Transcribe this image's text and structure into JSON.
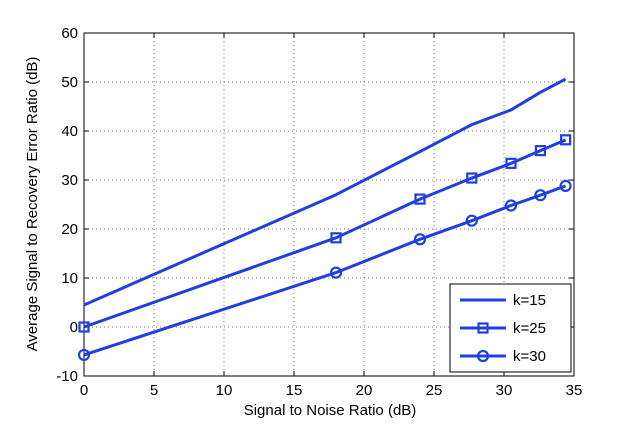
{
  "chart_data": {
    "type": "line",
    "title": "",
    "xlabel": "Signal to Noise Ratio (dB)",
    "ylabel": "Average Signal to Recovery Error Ratio (dB)",
    "xlim": [
      0,
      35
    ],
    "ylim": [
      -10,
      60
    ],
    "xticks": [
      0,
      5,
      10,
      15,
      20,
      25,
      30,
      35
    ],
    "yticks": [
      -10,
      0,
      10,
      20,
      30,
      40,
      50,
      60
    ],
    "grid": true,
    "legend_position": "bottom-right",
    "line_color": "#1f3fe0",
    "series": [
      {
        "name": "k=15",
        "marker": "none",
        "x": [
          0,
          18,
          24,
          27.7,
          30.5,
          32.6,
          34.4
        ],
        "y": [
          4.5,
          27,
          35.8,
          41.3,
          44.3,
          47.9,
          50.6
        ]
      },
      {
        "name": "k=25",
        "marker": "square",
        "x": [
          0,
          18,
          24,
          27.7,
          30.5,
          32.6,
          34.4
        ],
        "y": [
          0,
          18.2,
          26.1,
          30.4,
          33.4,
          36,
          38.2
        ]
      },
      {
        "name": "k=30",
        "marker": "circle",
        "x": [
          0,
          18,
          24,
          27.7,
          30.5,
          32.6,
          34.4
        ],
        "y": [
          -5.7,
          11.1,
          17.9,
          21.7,
          24.8,
          26.9,
          28.8
        ]
      }
    ]
  }
}
